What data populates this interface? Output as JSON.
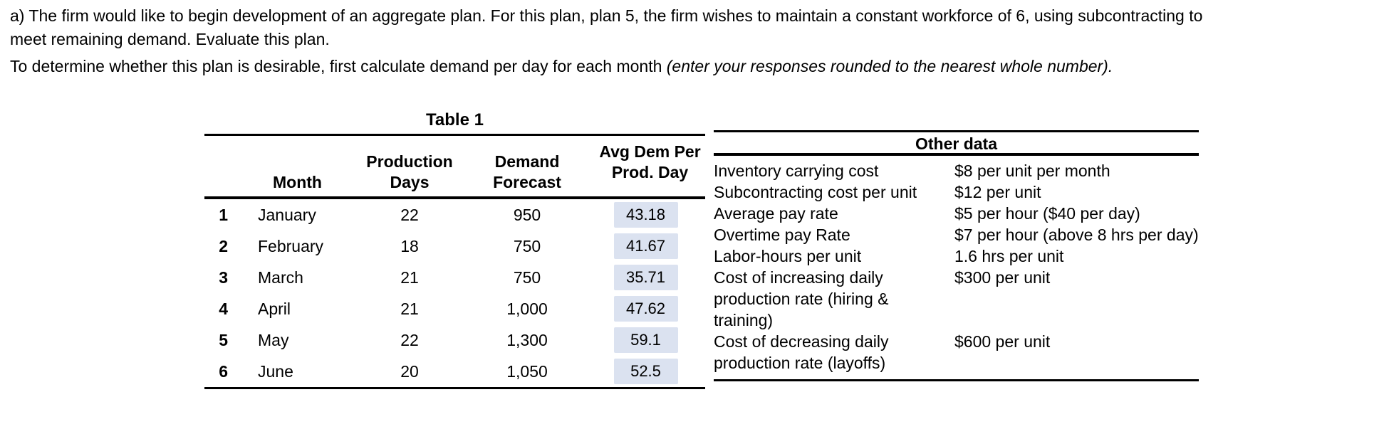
{
  "intro": {
    "para1_line1": "a) The firm would like to begin development of an aggregate plan. For this plan, plan 5, the firm wishes to maintain a constant workforce of 6, using subcontracting to",
    "para1_line2": "meet remaining demand. Evaluate this plan.",
    "para2_normal": "To determine whether this plan is desirable, first calculate demand per day for each month ",
    "para2_italic": "(enter your responses rounded to the nearest whole number)."
  },
  "table1": {
    "title": "Table 1",
    "headers": {
      "month": "Month",
      "production_days": {
        "line1": "Production",
        "line2": "Days"
      },
      "demand_forecast": {
        "line1": "Demand",
        "line2": "Forecast"
      },
      "avg_dem": {
        "line1": "Avg Dem Per",
        "line2": "Prod. Day"
      }
    },
    "answer_box_color": "#dbe2f0",
    "rows": [
      {
        "num": "1",
        "month": "January",
        "days": "22",
        "forecast": "950",
        "avg": "43.18"
      },
      {
        "num": "2",
        "month": "February",
        "days": "18",
        "forecast": "750",
        "avg": "41.67"
      },
      {
        "num": "3",
        "month": "March",
        "days": "21",
        "forecast": "750",
        "avg": "35.71"
      },
      {
        "num": "4",
        "month": "April",
        "days": "21",
        "forecast": "1,000",
        "avg": "47.62"
      },
      {
        "num": "5",
        "month": "May",
        "days": "22",
        "forecast": "1,300",
        "avg": "59.1"
      },
      {
        "num": "6",
        "month": "June",
        "days": "20",
        "forecast": "1,050",
        "avg": "52.5"
      }
    ]
  },
  "other": {
    "title": "Other data",
    "rows": [
      {
        "label": "Inventory carrying cost",
        "value": "$8 per unit per month"
      },
      {
        "label": "Subcontracting cost per unit",
        "value": "$12 per unit"
      },
      {
        "label": "Average pay rate",
        "value": "$5 per hour ($40 per day)"
      },
      {
        "label": "Overtime pay Rate",
        "value": "$7 per hour (above 8 hrs per day)"
      },
      {
        "label": "Labor-hours per unit",
        "value": "1.6 hrs per unit"
      },
      {
        "label": "Cost of increasing daily production rate (hiring & training)",
        "value": "$300 per unit"
      },
      {
        "label": "Cost of decreasing daily production rate (layoffs)",
        "value": "$600 per unit"
      }
    ]
  }
}
